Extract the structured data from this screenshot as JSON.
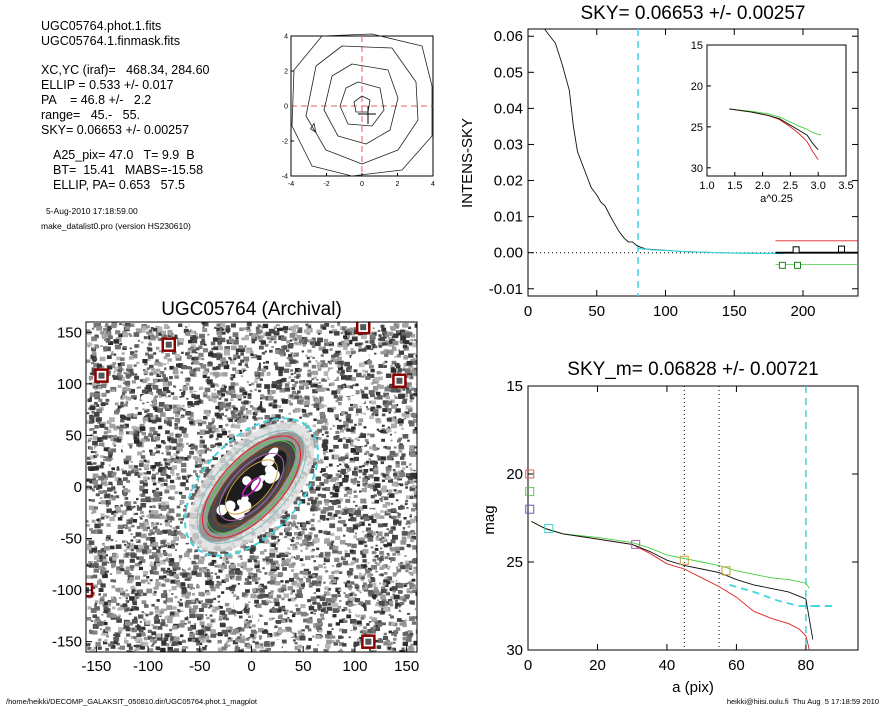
{
  "header": {
    "file1": "UGC05764.phot.1.fits",
    "file2": "UGC05764.1.finmask.fits",
    "xcyc": "XC,YC (iraf)=   468.34, 284.60",
    "ellip": "ELLIP = 0.533 +/- 0.017",
    "pa": "PA    = 46.8 +/-   2.2",
    "range": "range=   45.-   55.",
    "sky": "SKY= 0.06653 +/- 0.00257",
    "a25": "A25_pix= 47.0   T= 9.9  B",
    "bt": "BT=  15.41   MABS=-15.58",
    "ellip_pa": "ELLIP, PA= 0.653   57.5",
    "date": "5-Aug-2010 17:18:59.00",
    "program": "make_datalist0.pro (version HS230610)"
  },
  "footer": {
    "path": "/home/heikki/DECOMP_GALAKSIT_050810.dir/UGC05764.phot.1_magplot",
    "user": "heikki@hiisi.oulu.fi  Thu Aug  5 17:18:59 2010"
  },
  "chart_data": [
    {
      "id": "contour",
      "type": "contour",
      "xlim": [
        -4,
        4
      ],
      "ylim": [
        -4,
        4
      ],
      "x_ticks": [
        "-4",
        "-2",
        "0",
        "2",
        "4"
      ],
      "y_ticks": [
        "-4",
        "-2",
        "0",
        "2",
        "4"
      ],
      "center": [
        0,
        0
      ]
    },
    {
      "id": "image",
      "type": "image",
      "title": "UGC05764 (Archival)",
      "xlim": [
        -160,
        160
      ],
      "ylim": [
        -160,
        160
      ],
      "x_ticks": [
        "-150",
        "-100",
        "-50",
        "0",
        "50",
        "100",
        "150"
      ],
      "y_ticks": [
        "-150",
        "-100",
        "-50",
        "0",
        "50",
        "100",
        "150"
      ],
      "ellipse_pa_deg": 46.8,
      "ellipse_ellip": 0.533,
      "ellipse_a": 55,
      "marked_stars": [
        [
          -145,
          108
        ],
        [
          -80,
          138
        ],
        [
          108,
          155
        ],
        [
          143,
          103
        ],
        [
          113,
          -150
        ],
        [
          -160,
          -100
        ]
      ]
    },
    {
      "id": "sky",
      "type": "line",
      "title": "SKY= 0.06653 +/- 0.00257",
      "ylabel": "INTENS-SKY",
      "xlim": [
        0,
        240
      ],
      "ylim": [
        -0.012,
        0.062
      ],
      "x_ticks": [
        "0",
        "50",
        "100",
        "150",
        "200"
      ],
      "y_ticks": [
        "-0.01",
        "0.00",
        "0.01",
        "0.02",
        "0.03",
        "0.04",
        "0.05",
        "0.06"
      ],
      "vline_x": 80,
      "profile": [
        [
          12,
          0.062
        ],
        [
          20,
          0.058
        ],
        [
          25,
          0.052
        ],
        [
          30,
          0.045
        ],
        [
          33,
          0.035
        ],
        [
          36,
          0.028
        ],
        [
          40,
          0.024
        ],
        [
          43,
          0.021
        ],
        [
          46,
          0.018
        ],
        [
          50,
          0.016
        ],
        [
          53,
          0.014
        ],
        [
          56,
          0.013
        ],
        [
          60,
          0.01
        ],
        [
          63,
          0.008
        ],
        [
          66,
          0.006
        ],
        [
          70,
          0.004
        ],
        [
          73,
          0.003
        ],
        [
          76,
          0.003
        ],
        [
          79,
          0.002
        ],
        [
          82,
          0.0015
        ],
        [
          86,
          0.001
        ],
        [
          95,
          0.0008
        ],
        [
          110,
          0.0004
        ],
        [
          130,
          0.0001
        ],
        [
          150,
          -0.0001
        ],
        [
          170,
          -0.0002
        ],
        [
          190,
          -0.0001
        ],
        [
          205,
          0.0
        ]
      ],
      "cyan_profile": [
        [
          80,
          0.0012
        ],
        [
          90,
          0.0008
        ],
        [
          100,
          0.0006
        ],
        [
          115,
          0.0003
        ],
        [
          130,
          0.0001
        ],
        [
          150,
          -0.0001
        ],
        [
          170,
          -0.0002
        ],
        [
          185,
          -0.0002
        ]
      ],
      "red_sky_line": {
        "x": [
          180,
          240
        ],
        "y": 0.0033
      },
      "green_sky_line": {
        "x": [
          180,
          240
        ],
        "y": -0.0033
      },
      "black_sky_line": {
        "x": [
          180,
          240
        ],
        "y": 0.0
      },
      "squares_black": [
        [
          195,
          0.0008
        ],
        [
          228,
          0.001
        ]
      ],
      "squares_green": [
        [
          185,
          -0.0035
        ],
        [
          196,
          -0.0035
        ]
      ],
      "inset": {
        "xlabel": "a^0.25",
        "xlim": [
          1.0,
          3.5
        ],
        "ylim": [
          15,
          31
        ],
        "x_ticks": [
          "1.0",
          "1.5",
          "2.0",
          "2.5",
          "3.0",
          "3.5"
        ],
        "y_ticks": [
          "15",
          "20",
          "25",
          "30"
        ],
        "black": [
          [
            1.4,
            22.8
          ],
          [
            1.8,
            23.2
          ],
          [
            2.1,
            23.6
          ],
          [
            2.3,
            24.0
          ],
          [
            2.5,
            24.8
          ],
          [
            2.65,
            25.4
          ],
          [
            2.8,
            26.0
          ],
          [
            2.9,
            27.0
          ],
          [
            3.0,
            27.8
          ]
        ],
        "red": [
          [
            1.4,
            22.8
          ],
          [
            1.8,
            23.2
          ],
          [
            2.1,
            23.6
          ],
          [
            2.3,
            24.1
          ],
          [
            2.5,
            25.0
          ],
          [
            2.65,
            25.8
          ],
          [
            2.8,
            26.8
          ],
          [
            2.9,
            28.0
          ],
          [
            3.0,
            29.0
          ]
        ],
        "green": [
          [
            1.4,
            22.8
          ],
          [
            1.8,
            23.1
          ],
          [
            2.1,
            23.4
          ],
          [
            2.3,
            23.8
          ],
          [
            2.5,
            24.4
          ],
          [
            2.65,
            24.9
          ],
          [
            2.8,
            25.3
          ],
          [
            2.9,
            25.7
          ],
          [
            3.05,
            26.0
          ]
        ]
      }
    },
    {
      "id": "mag",
      "type": "line",
      "title": "SKY_m=  0.06828 +/- 0.00721",
      "xlabel": "a (pix)",
      "ylabel": "mag",
      "xlim": [
        0,
        95
      ],
      "ylim": [
        30,
        15
      ],
      "x_ticks": [
        "0",
        "20",
        "40",
        "60",
        "80"
      ],
      "y_ticks": [
        "15",
        "20",
        "25",
        "30"
      ],
      "dotted_vlines": [
        45,
        55
      ],
      "cyan_vline": 80,
      "black": [
        [
          1,
          22.7
        ],
        [
          5,
          23.1
        ],
        [
          10,
          23.4
        ],
        [
          20,
          23.7
        ],
        [
          30,
          24.0
        ],
        [
          35,
          24.4
        ],
        [
          40,
          24.9
        ],
        [
          45,
          25.2
        ],
        [
          50,
          25.4
        ],
        [
          55,
          25.6
        ],
        [
          60,
          26.0
        ],
        [
          65,
          26.3
        ],
        [
          70,
          26.5
        ],
        [
          75,
          26.7
        ],
        [
          80,
          27.1
        ],
        [
          82,
          29.4
        ]
      ],
      "red": [
        [
          1,
          22.7
        ],
        [
          5,
          23.1
        ],
        [
          10,
          23.4
        ],
        [
          20,
          23.7
        ],
        [
          30,
          24.0
        ],
        [
          35,
          24.5
        ],
        [
          40,
          25.1
        ],
        [
          45,
          25.4
        ],
        [
          50,
          25.9
        ],
        [
          55,
          26.4
        ],
        [
          60,
          27.0
        ],
        [
          65,
          27.8
        ],
        [
          70,
          28.2
        ],
        [
          75,
          28.5
        ],
        [
          78,
          28.8
        ],
        [
          80,
          29.2
        ],
        [
          81,
          30.0
        ]
      ],
      "green": [
        [
          1,
          22.7
        ],
        [
          5,
          23.1
        ],
        [
          10,
          23.4
        ],
        [
          20,
          23.6
        ],
        [
          30,
          23.9
        ],
        [
          35,
          24.2
        ],
        [
          40,
          24.6
        ],
        [
          45,
          24.8
        ],
        [
          50,
          25.0
        ],
        [
          55,
          25.2
        ],
        [
          60,
          25.5
        ],
        [
          65,
          25.7
        ],
        [
          70,
          25.9
        ],
        [
          75,
          26.0
        ],
        [
          80,
          26.2
        ],
        [
          81,
          26.5
        ]
      ],
      "cyan_dashed": [
        [
          58,
          26.3
        ],
        [
          65,
          26.7
        ],
        [
          72,
          27.2
        ],
        [
          78,
          27.5
        ],
        [
          82,
          27.5
        ]
      ],
      "cyan_hseg": {
        "x": [
          82,
          88
        ],
        "y": 27.5
      },
      "markers": [
        {
          "x": 0.5,
          "y": 20.0,
          "color": "#e06060"
        },
        {
          "x": 0.5,
          "y": 21.0,
          "color": "#60c060"
        },
        {
          "x": 0.5,
          "y": 22.0,
          "color": "#6060c0"
        },
        {
          "x": 6,
          "y": 23.1,
          "color": "#40d0d0"
        },
        {
          "x": 31,
          "y": 24.0,
          "color": "#b060b0"
        },
        {
          "x": 45,
          "y": 24.9,
          "color": "#d0a040"
        },
        {
          "x": 57,
          "y": 25.5,
          "color": "#c0a030"
        }
      ]
    }
  ],
  "colors": {
    "cyan": "#3dd6e0",
    "red": "#e02020",
    "green": "#40d040",
    "dark_red": "#8b0000"
  }
}
